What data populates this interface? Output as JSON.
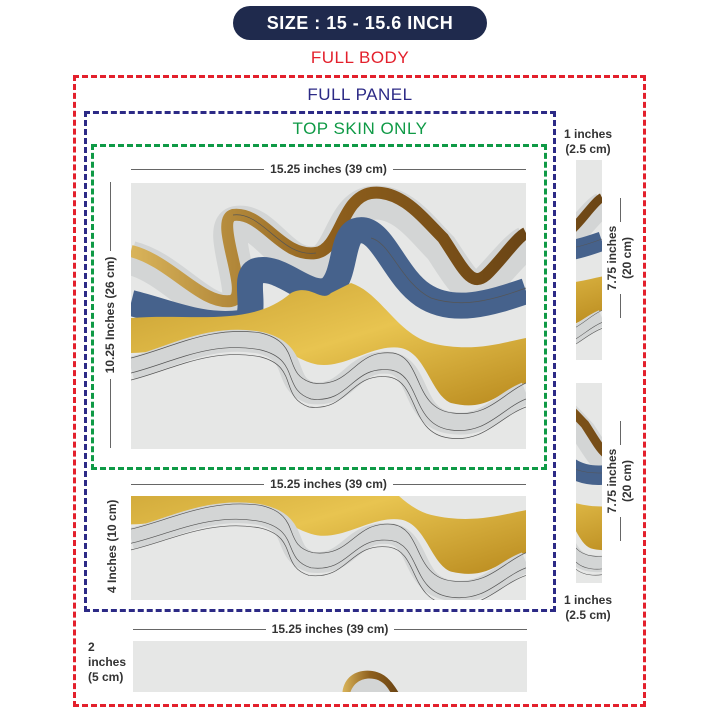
{
  "header": {
    "size_label": "SIZE : 15 - 15.6 INCH"
  },
  "sections": {
    "full_body": "FULL BODY",
    "full_panel": "FULL PANEL",
    "top_skin": "TOP SKIN ONLY"
  },
  "dimensions": {
    "top_width": "15.25 inches (39 cm)",
    "top_height": "10.25 Inches (26 cm)",
    "bottom_width": "15.25 inches (39 cm)",
    "bottom_height": "4 Inches (10 cm)",
    "strip_width_top": [
      "1 inches",
      "(2.5 cm)"
    ],
    "strip_width_bottom": [
      "1 inches",
      "(2.5 cm)"
    ],
    "strip_height_1": [
      "7.75 inches",
      "(20 cm)"
    ],
    "strip_height_2": [
      "7.75 inches",
      "(20 cm)"
    ],
    "base_width": "15.25 inches (39 cm)",
    "base_height": [
      "2 inches",
      "(5 cm)"
    ]
  },
  "colors": {
    "full_body": "#e3202c",
    "full_panel": "#2c2a86",
    "top_skin": "#0f9a46",
    "pill": "#1f2a4d",
    "blue": "#46628c",
    "gold": "#d4a72c",
    "bronze": "#9a6a22",
    "gray": "#d3d5d5"
  }
}
